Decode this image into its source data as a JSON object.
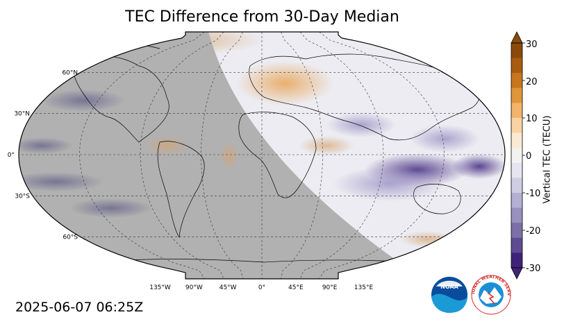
{
  "title": "TEC Difference from 30-Day Median",
  "timestamp": "2025-06-07 06:25Z",
  "colorbar": {
    "label": "Vertical TEC (TECU)",
    "ticks": [
      "30",
      "20",
      "10",
      "0",
      "-10",
      "-20",
      "-30"
    ],
    "min": -30,
    "max": 30,
    "colors_top_to_bottom": [
      "#8a4a0c",
      "#a85c10",
      "#c7761f",
      "#e0953a",
      "#f2b46a",
      "#f9d3a4",
      "#fbe9d3",
      "#f4f2f1",
      "#e6e4ee",
      "#cfcde3",
      "#b4b0d2",
      "#9891bd",
      "#7b71a8",
      "#5d4c91",
      "#3f237a"
    ]
  },
  "map": {
    "lat_labels": [
      "60°N",
      "30°N",
      "0°",
      "30°S",
      "60°S"
    ],
    "lon_labels": [
      "135°W",
      "90°W",
      "45°W",
      "0°",
      "45°E",
      "90°E",
      "135°E"
    ],
    "night_color": "#b1b1b1",
    "day_color": "#ececf2"
  },
  "logos": {
    "noaa": "NOAA",
    "nws": "NATIONAL WEATHER SERVICE"
  }
}
